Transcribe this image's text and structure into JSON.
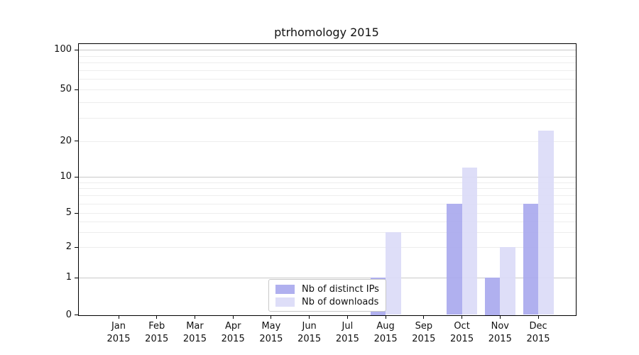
{
  "chart_data": {
    "type": "bar",
    "title": "ptrhomology 2015",
    "categories": [
      "Jan",
      "Feb",
      "Mar",
      "Apr",
      "May",
      "Jun",
      "Jul",
      "Aug",
      "Sep",
      "Oct",
      "Nov",
      "Dec"
    ],
    "x_year_label": "2015",
    "series": [
      {
        "name": "Nb of distinct IPs",
        "color": "#aaaaee",
        "values": [
          0,
          0,
          0,
          0,
          0,
          0,
          0,
          1,
          0,
          6,
          1,
          6
        ]
      },
      {
        "name": "Nb of downloads",
        "color": "#dcdcf8",
        "values": [
          0,
          0,
          0,
          0,
          0,
          0,
          0,
          3,
          0,
          12,
          2,
          24
        ]
      }
    ],
    "yscale": "log above 1, linear 0-1",
    "ytick_labels": [
      0,
      1,
      2,
      5,
      10,
      20,
      50,
      100
    ],
    "major_gridlines": [
      1,
      10,
      100
    ],
    "minor_gridlines": [
      2,
      3,
      4,
      5,
      6,
      7,
      8,
      9,
      20,
      30,
      40,
      50,
      60,
      70,
      80,
      90
    ],
    "ylim": [
      0,
      115
    ],
    "grid": true,
    "axis_color": "#000000",
    "major_grid_color": "#c9c9c9",
    "minor_grid_color": "#ededed",
    "legend": {
      "position": "inside lower center-left"
    }
  }
}
